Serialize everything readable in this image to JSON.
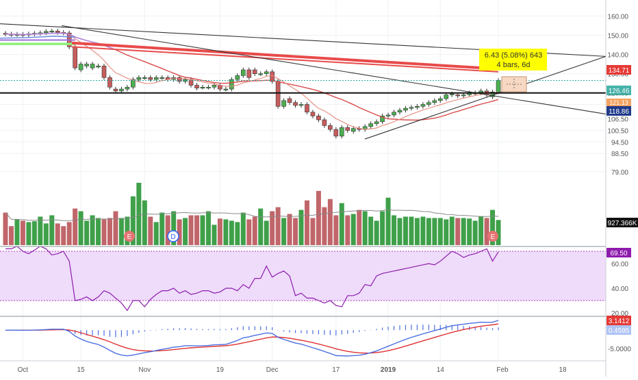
{
  "colors": {
    "up": "#4CAF50",
    "down": "#C75C5C",
    "vol_up": "#3FA04A",
    "vol_down": "#C0666A",
    "ma_fast": "#E5887A",
    "ma_slow": "#D94A4A",
    "ma_purple": "#B08AE0",
    "ma_blue": "#6B8CE0",
    "ma_green": "#8EF07A",
    "rsi_line": "#8E1BAE",
    "rsi_band": "#E8C8F8",
    "macd_line": "#4A6FE0",
    "signal_line": "#E03030",
    "hist": "#4A6FE0",
    "grid": "#EEF1F4",
    "axis_text": "#555555"
  },
  "axis": {
    "price_ticks": [
      "160.00",
      "150.00",
      "140.00",
      "130.00",
      "120.00",
      "114.00",
      "106.50",
      "100.50",
      "94.50",
      "88.50",
      "79.00"
    ],
    "rsi_ticks": [
      "60.00",
      "40.00",
      "20.00"
    ],
    "macd_ticks": [
      "-5.0000"
    ],
    "time_labels": [
      "Oct",
      "15",
      "Nov",
      "19",
      "Dec",
      "17",
      "2019",
      "14",
      "Feb",
      "18"
    ]
  },
  "badges": {
    "price_high": "134.71",
    "price_last": "126.46",
    "price_support": "118.86",
    "price_hidden": "121.13",
    "volume": "927.366K",
    "rsi": "69.50",
    "macd": "3.1412",
    "macd_hist": "0.4595"
  },
  "measure": {
    "line1": "6.43 (5.08%) 643",
    "line2": "4 bars, 6d"
  },
  "events": [
    "E",
    "D",
    "E"
  ],
  "chart_data": {
    "type": "candlestick",
    "x": [
      "Sep 27",
      "Sep 28",
      "Oct 1",
      "Oct 2",
      "Oct 3",
      "Oct 4",
      "Oct 5",
      "Oct 8",
      "Oct 9",
      "Oct 10",
      "Oct 11",
      "Oct 12",
      "Oct 15",
      "Oct 16",
      "Oct 17",
      "Oct 18",
      "Oct 19",
      "Oct 22",
      "Oct 23",
      "Oct 24",
      "Oct 25",
      "Oct 26",
      "Oct 29",
      "Oct 30",
      "Oct 31",
      "Nov 1",
      "Nov 2",
      "Nov 5",
      "Nov 6",
      "Nov 7",
      "Nov 8",
      "Nov 9",
      "Nov 12",
      "Nov 13",
      "Nov 14",
      "Nov 15",
      "Nov 16",
      "Nov 19",
      "Nov 20",
      "Nov 21",
      "Nov 23",
      "Nov 26",
      "Nov 27",
      "Nov 28",
      "Nov 29",
      "Nov 30",
      "Dec 3",
      "Dec 4",
      "Dec 6",
      "Dec 7",
      "Dec 10",
      "Dec 11",
      "Dec 12",
      "Dec 13",
      "Dec 14",
      "Dec 17",
      "Dec 18",
      "Dec 19",
      "Dec 20",
      "Dec 21",
      "Dec 24",
      "Dec 26",
      "Dec 27",
      "Dec 28",
      "Dec 31",
      "Jan 2",
      "Jan 3",
      "Jan 4",
      "Jan 7",
      "Jan 8",
      "Jan 9",
      "Jan 10",
      "Jan 11",
      "Jan 14",
      "Jan 15",
      "Jan 16",
      "Jan 17",
      "Jan 18",
      "Jan 22",
      "Jan 23",
      "Jan 24",
      "Jan 25",
      "Jan 28",
      "Jan 29",
      "Jan 30",
      "Jan 31"
    ],
    "open": [
      151.0,
      150.6,
      150.4,
      150.5,
      150.2,
      150.7,
      151.0,
      151.3,
      152.0,
      152.2,
      151.5,
      151.2,
      144.0,
      132.0,
      134.0,
      133.0,
      134.0,
      134.0,
      128.0,
      122.0,
      121.0,
      122.0,
      123.0,
      127.0,
      128.0,
      128.0,
      127.0,
      128.0,
      128.0,
      127.0,
      128.0,
      126.0,
      127.0,
      124.0,
      123.0,
      123.0,
      123.0,
      124.0,
      122.0,
      122.0,
      127.0,
      129.0,
      132.0,
      132.0,
      130.0,
      130.0,
      131.0,
      126.0,
      113.0,
      117.0,
      115.0,
      113.5,
      114.0,
      110.0,
      108.0,
      106.0,
      103.0,
      101.0,
      97.5,
      102.0,
      100.0,
      101.5,
      101.0,
      102.5,
      104.0,
      105.0,
      108.0,
      108.5,
      110.0,
      111.0,
      112.0,
      112.5,
      113.0,
      114.0,
      115.0,
      116.0,
      117.0,
      119.0,
      119.0,
      118.5,
      119.0,
      120.0,
      120.0,
      121.0,
      118.0,
      120.5
    ],
    "close": [
      150.6,
      150.4,
      150.5,
      150.2,
      150.7,
      151.0,
      151.3,
      152.0,
      152.2,
      151.5,
      151.2,
      144.0,
      133.0,
      135.0,
      135.0,
      135.0,
      134.0,
      128.0,
      123.0,
      121.0,
      122.0,
      123.0,
      127.0,
      128.0,
      128.0,
      127.0,
      128.0,
      128.0,
      127.0,
      128.0,
      126.0,
      127.0,
      124.0,
      122.5,
      123.0,
      123.0,
      124.0,
      122.0,
      122.0,
      127.0,
      129.0,
      132.0,
      128.0,
      130.0,
      130.0,
      131.0,
      126.0,
      113.0,
      116.0,
      115.0,
      113.5,
      114.0,
      110.0,
      108.0,
      106.0,
      103.0,
      101.0,
      97.5,
      102.0,
      100.5,
      101.5,
      101.0,
      102.5,
      104.0,
      105.0,
      108.0,
      108.5,
      110.0,
      111.0,
      112.0,
      112.5,
      113.0,
      114.0,
      115.0,
      116.0,
      117.0,
      119.0,
      119.5,
      118.5,
      119.0,
      120.0,
      120.0,
      121.0,
      119.0,
      120.5,
      126.46
    ],
    "volume_k": [
      1200,
      700,
      950,
      900,
      850,
      880,
      1050,
      800,
      1100,
      800,
      700,
      850,
      1350,
      1250,
      900,
      1100,
      1000,
      950,
      1000,
      1250,
      1000,
      1050,
      1800,
      2300,
      1650,
      1050,
      850,
      1200,
      1100,
      1250,
      950,
      1000,
      1100,
      1100,
      1100,
      1250,
      750,
      980,
      950,
      900,
      850,
      1200,
      950,
      1050,
      1350,
      900,
      1250,
      1400,
      1000,
      1150,
      1000,
      1300,
      1650,
      1000,
      2000,
      1400,
      1700,
      1100,
      1550,
      1100,
      1150,
      1300,
      1250,
      1050,
      900,
      1250,
      1750,
      1100,
      1000,
      1050,
      1050,
      1000,
      1050,
      1000,
      1000,
      1000,
      950,
      1050,
      1000,
      1000,
      980,
      900,
      1050,
      1000,
      1300,
      927
    ],
    "rsi": [
      72,
      72,
      74,
      70,
      68,
      71,
      74,
      72,
      67,
      68,
      70,
      62,
      30,
      31,
      33,
      30,
      33,
      38,
      36,
      32,
      28,
      22,
      30,
      30,
      25,
      31,
      35,
      38,
      38,
      40,
      36,
      38,
      35,
      36,
      38,
      38,
      36,
      37,
      40,
      40,
      38,
      43,
      40,
      48,
      48,
      58,
      49,
      52,
      54,
      50,
      34,
      36,
      32,
      32,
      30,
      28,
      30,
      26,
      25,
      34,
      34,
      36,
      43,
      42,
      50,
      52,
      53,
      54,
      55,
      56,
      57,
      58,
      59,
      60,
      59,
      62,
      66,
      70,
      68,
      65,
      67,
      68,
      70,
      72,
      62,
      69.5
    ],
    "ylim": [
      75,
      163
    ],
    "volume_avg_label": "927.366K"
  }
}
